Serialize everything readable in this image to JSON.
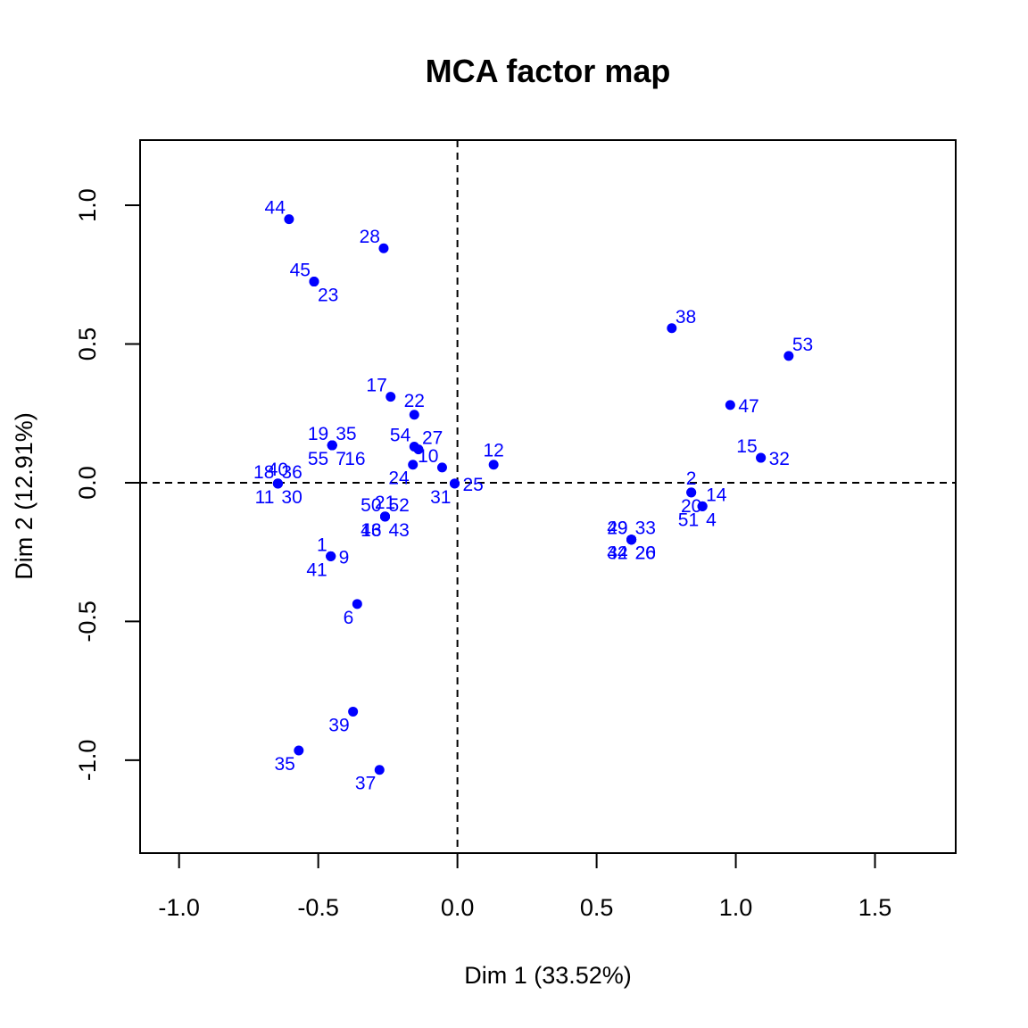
{
  "colors": {
    "points": "#0000FF",
    "axes": "#000000",
    "background": "#FFFFFF"
  },
  "chart_data": {
    "type": "scatter",
    "title": "MCA factor map",
    "xlabel": "Dim 1 (33.52%)",
    "ylabel": "Dim 2 (12.91%)",
    "xlim": [
      -1.14,
      1.79
    ],
    "ylim": [
      -1.335,
      1.235
    ],
    "xticks": [
      -1.0,
      -0.5,
      0.0,
      0.5,
      1.0,
      1.5
    ],
    "xtick_labels": [
      "-1.0",
      "-0.5",
      "0.0",
      "0.5",
      "1.0",
      "1.5"
    ],
    "yticks": [
      -1.0,
      -0.5,
      0.0,
      0.5,
      1.0
    ],
    "ytick_labels": [
      "-1.0",
      "-0.5",
      "0.0",
      "0.5",
      "1.0"
    ],
    "reference_lines": {
      "x": 0,
      "y": 0,
      "style": "dashed"
    },
    "grid": false,
    "points": [
      {
        "x": -0.605,
        "y": 0.95,
        "label": "44",
        "pos": "tl"
      },
      {
        "x": -0.265,
        "y": 0.845,
        "label": "28",
        "pos": "tl"
      },
      {
        "x": -0.515,
        "y": 0.725,
        "label": "45",
        "pos": "tl"
      },
      {
        "x": -0.515,
        "y": 0.725,
        "label": "23",
        "pos": "br"
      },
      {
        "x": 0.77,
        "y": 0.557,
        "label": "38",
        "pos": "tr"
      },
      {
        "x": 1.19,
        "y": 0.457,
        "label": "53",
        "pos": "tr"
      },
      {
        "x": -0.24,
        "y": 0.31,
        "label": "17",
        "pos": "tl"
      },
      {
        "x": -0.155,
        "y": 0.245,
        "label": "22",
        "pos": "t"
      },
      {
        "x": 0.98,
        "y": 0.28,
        "label": "47",
        "pos": "r"
      },
      {
        "x": -0.45,
        "y": 0.135,
        "label": "19",
        "pos": "tl"
      },
      {
        "x": -0.45,
        "y": 0.135,
        "label": "35",
        "pos": "tr"
      },
      {
        "x": -0.45,
        "y": 0.135,
        "label": "55",
        "pos": "bl"
      },
      {
        "x": -0.45,
        "y": 0.135,
        "label": "7",
        "pos": "br"
      },
      {
        "x": -0.45,
        "y": 0.135,
        "label": "16",
        "pos": "br2"
      },
      {
        "x": -0.155,
        "y": 0.13,
        "label": "54",
        "pos": "tl"
      },
      {
        "x": -0.14,
        "y": 0.12,
        "label": "27",
        "pos": "tr"
      },
      {
        "x": -0.16,
        "y": 0.065,
        "label": "24",
        "pos": "bl"
      },
      {
        "x": -0.055,
        "y": 0.055,
        "label": "10",
        "pos": "tl"
      },
      {
        "x": 0.13,
        "y": 0.065,
        "label": "12",
        "pos": "t"
      },
      {
        "x": -0.01,
        "y": -0.003,
        "label": "25",
        "pos": "r"
      },
      {
        "x": -0.01,
        "y": -0.003,
        "label": "31",
        "pos": "bl"
      },
      {
        "x": 1.09,
        "y": 0.09,
        "label": "15",
        "pos": "tl"
      },
      {
        "x": 1.09,
        "y": 0.09,
        "label": "32",
        "pos": "r"
      },
      {
        "x": -0.645,
        "y": -0.003,
        "label": "18",
        "pos": "tl"
      },
      {
        "x": -0.645,
        "y": -0.003,
        "label": "40",
        "pos": "t"
      },
      {
        "x": -0.645,
        "y": -0.003,
        "label": "36",
        "pos": "tr"
      },
      {
        "x": -0.645,
        "y": -0.003,
        "label": "11",
        "pos": "bl"
      },
      {
        "x": -0.645,
        "y": -0.003,
        "label": "30",
        "pos": "br"
      },
      {
        "x": 0.84,
        "y": -0.035,
        "label": "2",
        "pos": "t"
      },
      {
        "x": 0.84,
        "y": -0.035,
        "label": "20",
        "pos": "b"
      },
      {
        "x": 0.88,
        "y": -0.085,
        "label": "14",
        "pos": "tr"
      },
      {
        "x": 0.88,
        "y": -0.085,
        "label": "51",
        "pos": "bl"
      },
      {
        "x": 0.88,
        "y": -0.085,
        "label": "4",
        "pos": "br"
      },
      {
        "x": -0.26,
        "y": -0.122,
        "label": "50",
        "pos": "tl"
      },
      {
        "x": -0.26,
        "y": -0.122,
        "label": "21",
        "pos": "t"
      },
      {
        "x": -0.26,
        "y": -0.122,
        "label": "52",
        "pos": "tr"
      },
      {
        "x": -0.26,
        "y": -0.122,
        "label": "46",
        "pos": "bl"
      },
      {
        "x": -0.26,
        "y": -0.122,
        "label": "13",
        "pos": "bl"
      },
      {
        "x": -0.26,
        "y": -0.122,
        "label": "43",
        "pos": "br"
      },
      {
        "x": 0.625,
        "y": -0.205,
        "label": "49",
        "pos": "tl"
      },
      {
        "x": 0.625,
        "y": -0.205,
        "label": "29",
        "pos": "tl"
      },
      {
        "x": 0.625,
        "y": -0.205,
        "label": "33",
        "pos": "tr"
      },
      {
        "x": 0.625,
        "y": -0.205,
        "label": "34",
        "pos": "bl"
      },
      {
        "x": 0.625,
        "y": -0.205,
        "label": "42",
        "pos": "bl"
      },
      {
        "x": 0.625,
        "y": -0.205,
        "label": "26",
        "pos": "br"
      },
      {
        "x": 0.625,
        "y": -0.205,
        "label": "20",
        "pos": "br"
      },
      {
        "x": -0.455,
        "y": -0.265,
        "label": "1",
        "pos": "tl"
      },
      {
        "x": -0.455,
        "y": -0.265,
        "label": "9",
        "pos": "r"
      },
      {
        "x": -0.455,
        "y": -0.265,
        "label": "41",
        "pos": "bl"
      },
      {
        "x": -0.36,
        "y": -0.437,
        "label": "6",
        "pos": "bl"
      },
      {
        "x": -0.375,
        "y": -0.825,
        "label": "39",
        "pos": "bl"
      },
      {
        "x": -0.57,
        "y": -0.965,
        "label": "35",
        "pos": "bl"
      },
      {
        "x": -0.28,
        "y": -1.035,
        "label": "37",
        "pos": "bl"
      }
    ]
  }
}
